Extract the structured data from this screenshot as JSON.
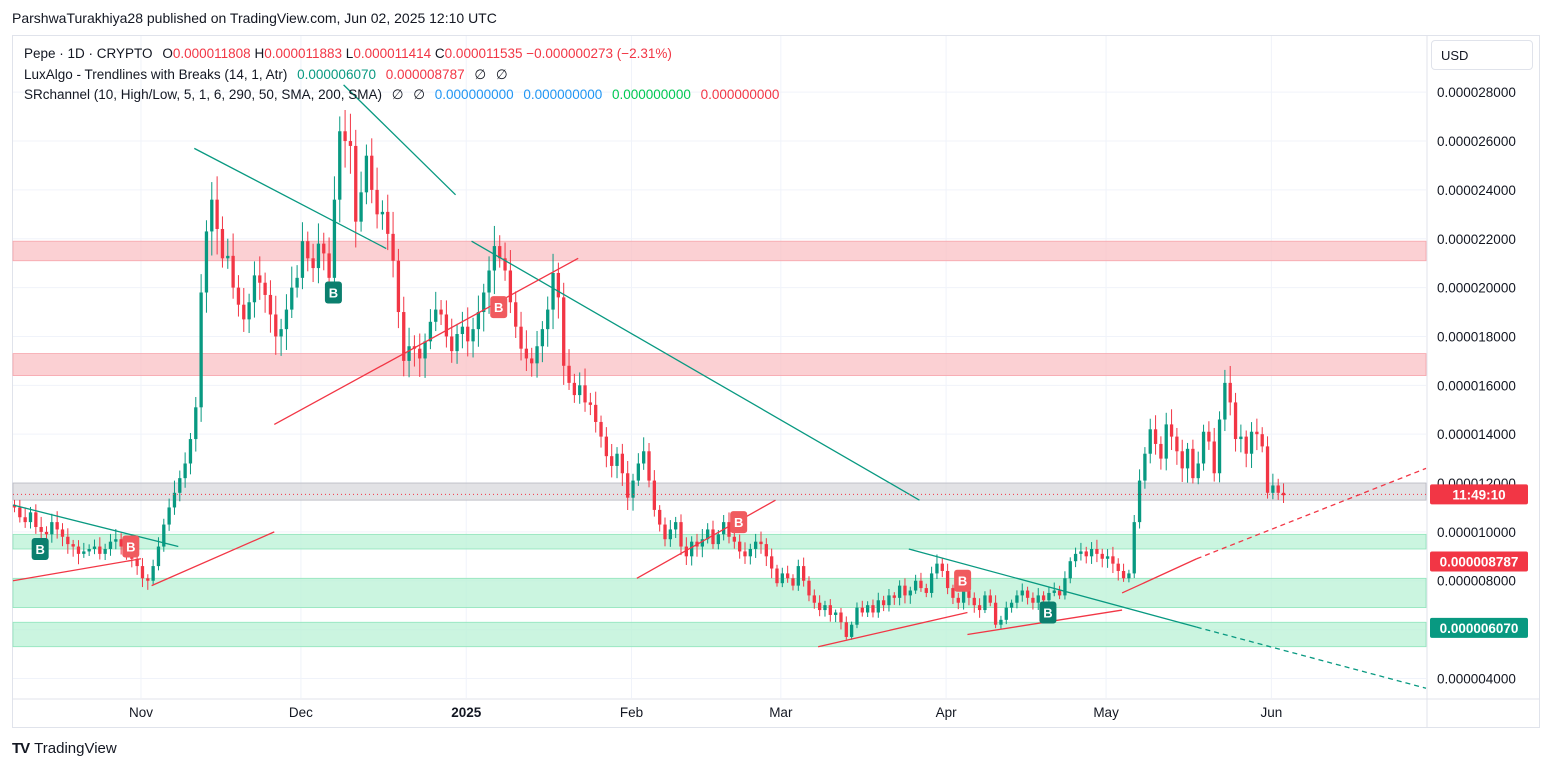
{
  "header": {
    "publisher_line": "ParshwaTurakhiya28 published on TradingView.com, Jun 02, 2025 12:10 UTC"
  },
  "legend": {
    "symbol_line": {
      "symbol": "Pepe · 1D · CRYPTO",
      "o_label": "O",
      "o_value": "0.000011808",
      "h_label": "H",
      "h_value": "0.000011883",
      "l_label": "L",
      "l_value": "0.000011414",
      "c_label": "C",
      "c_value": "0.000011535",
      "change": "−0.000000273 (−2.31%)"
    },
    "luxalgo_line": {
      "name": "LuxAlgo - Trendlines with Breaks (14, 1, Atr)",
      "v1": "0.000006070",
      "v2": "0.000008787",
      "v3": "∅",
      "v4": "∅"
    },
    "srchannel_line": {
      "name": "SRchannel (10, High/Low, 5, 1, 6, 290, 50, SMA, 200, SMA)",
      "v1": "∅",
      "v2": "∅",
      "v3": "0.000000000",
      "v4": "0.000000000",
      "v5": "0.000000000",
      "v6": "0.000000000"
    }
  },
  "currency_button": "USD",
  "footer": {
    "brand": "TradingView",
    "logo_glyph": "TV"
  },
  "colors": {
    "up": "#089981",
    "down": "#f23645",
    "resistance_zone": "#f9c0c4",
    "support_zone": "#b9f1d5",
    "price_zone": "#d8d8dc",
    "trend_teal": "#089981",
    "trend_red": "#f23645"
  },
  "chart_data": {
    "type": "candlestick",
    "title": "Pepe · 1D · CRYPTO",
    "x_tick_labels": [
      "Nov",
      "Dec",
      "2025",
      "Feb",
      "Mar",
      "Apr",
      "May",
      "Jun"
    ],
    "x_tick_dates": [
      "2024-11-01",
      "2024-12-01",
      "2025-01-01",
      "2025-02-01",
      "2025-03-01",
      "2025-04-01",
      "2025-05-01",
      "2025-06-01"
    ],
    "x_range": [
      "2024-10-08",
      "2025-06-30"
    ],
    "y_tick_labels": [
      "0.000028000",
      "0.000026000",
      "0.000024000",
      "0.000022000",
      "0.000020000",
      "0.000018000",
      "0.000016000",
      "0.000014000",
      "0.000012000",
      "0.000010000",
      "0.000008000",
      "0.000006000",
      "0.000004000"
    ],
    "y_ticks": [
      2.8e-05,
      2.6e-05,
      2.4e-05,
      2.2e-05,
      2e-05,
      1.8e-05,
      1.6e-05,
      1.4e-05,
      1.2e-05,
      1e-05,
      8e-06,
      6e-06,
      4e-06
    ],
    "ylim": [
      3.2e-06,
      3.03e-05
    ],
    "grid": true,
    "price_labels": [
      {
        "text": "11:49:10",
        "value": 1.1535e-05,
        "color": "#f23645"
      },
      {
        "text": "0.000008787",
        "value": 8.787e-06,
        "color": "#f23645"
      },
      {
        "text": "0.000006070",
        "value": 6.07e-06,
        "color": "#089981"
      }
    ],
    "zones": [
      {
        "kind": "resistance",
        "low": 2.11e-05,
        "high": 2.19e-05
      },
      {
        "kind": "resistance",
        "low": 1.64e-05,
        "high": 1.73e-05
      },
      {
        "kind": "price",
        "low": 1.13e-05,
        "high": 1.2e-05
      },
      {
        "kind": "support",
        "low": 9.3e-06,
        "high": 9.9e-06
      },
      {
        "kind": "support",
        "low": 6.9e-06,
        "high": 8.1e-06
      },
      {
        "kind": "support",
        "low": 5.3e-06,
        "high": 6.3e-06
      }
    ],
    "trendlines": [
      {
        "color": "teal",
        "from": [
          "2024-10-08",
          1.11e-05
        ],
        "to": [
          "2024-11-08",
          9.4e-06
        ],
        "dashed": false
      },
      {
        "color": "teal",
        "from": [
          "2024-11-11",
          2.57e-05
        ],
        "to": [
          "2024-12-17",
          2.16e-05
        ],
        "dashed": false
      },
      {
        "color": "teal",
        "from": [
          "2024-12-09",
          2.83e-05
        ],
        "to": [
          "2024-12-30",
          2.38e-05
        ],
        "dashed": false
      },
      {
        "color": "teal",
        "from": [
          "2025-01-02",
          2.19e-05
        ],
        "to": [
          "2025-03-27",
          1.13e-05
        ],
        "dashed": false
      },
      {
        "color": "teal",
        "from": [
          "2025-03-25",
          9.3e-06
        ],
        "to": [
          "2025-05-18",
          6.1e-06
        ],
        "dashed": false
      },
      {
        "color": "teal",
        "from": [
          "2025-05-18",
          6.1e-06
        ],
        "to": [
          "2025-06-30",
          3.6e-06
        ],
        "dashed": true
      },
      {
        "color": "red",
        "from": [
          "2024-10-08",
          8e-06
        ],
        "to": [
          "2024-11-01",
          8.9e-06
        ],
        "dashed": false
      },
      {
        "color": "red",
        "from": [
          "2024-11-03",
          7.8e-06
        ],
        "to": [
          "2024-11-26",
          1e-05
        ],
        "dashed": false
      },
      {
        "color": "red",
        "from": [
          "2024-11-26",
          1.44e-05
        ],
        "to": [
          "2025-01-22",
          2.12e-05
        ],
        "dashed": false
      },
      {
        "color": "red",
        "from": [
          "2025-02-02",
          8.1e-06
        ],
        "to": [
          "2025-02-28",
          1.13e-05
        ],
        "dashed": false
      },
      {
        "color": "red",
        "from": [
          "2025-03-08",
          5.3e-06
        ],
        "to": [
          "2025-04-05",
          6.7e-06
        ],
        "dashed": false
      },
      {
        "color": "red",
        "from": [
          "2025-04-05",
          5.8e-06
        ],
        "to": [
          "2025-05-04",
          6.8e-06
        ],
        "dashed": false
      },
      {
        "color": "red",
        "from": [
          "2025-05-04",
          7.5e-06
        ],
        "to": [
          "2025-05-18",
          8.9e-06
        ],
        "dashed": false
      },
      {
        "color": "red",
        "from": [
          "2025-05-18",
          8.9e-06
        ],
        "to": [
          "2025-06-30",
          1.26e-05
        ],
        "dashed": true
      }
    ],
    "markers": [
      {
        "label": "B",
        "date": "2024-10-13",
        "value": 9.3e-06,
        "color": "teal"
      },
      {
        "label": "B",
        "date": "2024-10-30",
        "value": 9.4e-06,
        "color": "red"
      },
      {
        "label": "B",
        "date": "2024-12-07",
        "value": 1.98e-05,
        "color": "teal"
      },
      {
        "label": "B",
        "date": "2025-01-07",
        "value": 1.92e-05,
        "color": "red"
      },
      {
        "label": "B",
        "date": "2025-02-21",
        "value": 1.04e-05,
        "color": "red"
      },
      {
        "label": "B",
        "date": "2025-04-04",
        "value": 8e-06,
        "color": "red"
      },
      {
        "label": "B",
        "date": "2025-04-20",
        "value": 6.7e-06,
        "color": "teal"
      }
    ],
    "start_date": "2024-10-08",
    "close": [
      1.1e-05,
      1.06e-05,
      1.04e-05,
      1.08e-05,
      1.02e-05,
      1e-05,
      9.9e-06,
      1.04e-05,
      1.01e-05,
      9.8e-06,
      9.5e-06,
      9.4e-06,
      9.1e-06,
      9.2e-06,
      9.3e-06,
      9.4e-06,
      9.1e-06,
      9.3e-06,
      9.6e-06,
      9.7e-06,
      9.4e-06,
      9.2e-06,
      8.9e-06,
      8.6e-06,
      8.1e-06,
      8e-06,
      8.6e-06,
      9.4e-06,
      1.03e-05,
      1.1e-05,
      1.16e-05,
      1.22e-05,
      1.28e-05,
      1.38e-05,
      1.51e-05,
      1.98e-05,
      2.23e-05,
      2.36e-05,
      2.24e-05,
      2.12e-05,
      2.13e-05,
      2e-05,
      1.93e-05,
      1.87e-05,
      1.94e-05,
      2.05e-05,
      2.02e-05,
      1.97e-05,
      1.89e-05,
      1.8e-05,
      1.83e-05,
      1.91e-05,
      2e-05,
      2.04e-05,
      2.19e-05,
      2.12e-05,
      2.08e-05,
      2.18e-05,
      2.14e-05,
      2.04e-05,
      2.36e-05,
      2.64e-05,
      2.6e-05,
      2.58e-05,
      2.27e-05,
      2.39e-05,
      2.54e-05,
      2.4e-05,
      2.3e-05,
      2.31e-05,
      2.22e-05,
      2.11e-05,
      1.9e-05,
      1.7e-05,
      1.76e-05,
      1.75e-05,
      1.71e-05,
      1.78e-05,
      1.86e-05,
      1.91e-05,
      1.89e-05,
      1.8e-05,
      1.74e-05,
      1.81e-05,
      1.84e-05,
      1.78e-05,
      1.83e-05,
      1.9e-05,
      1.98e-05,
      2.07e-05,
      2.17e-05,
      2.12e-05,
      2.07e-05,
      1.94e-05,
      1.84e-05,
      1.75e-05,
      1.71e-05,
      1.69e-05,
      1.76e-05,
      1.83e-05,
      1.91e-05,
      2.06e-05,
      1.96e-05,
      1.68e-05,
      1.61e-05,
      1.56e-05,
      1.6e-05,
      1.53e-05,
      1.52e-05,
      1.45e-05,
      1.39e-05,
      1.31e-05,
      1.27e-05,
      1.32e-05,
      1.24e-05,
      1.14e-05,
      1.21e-05,
      1.28e-05,
      1.33e-05,
      1.21e-05,
      1.09e-05,
      1.03e-05,
      9.7e-06,
      1.01e-05,
      1.04e-05,
      9.4e-06,
      9e-06,
      9.6e-06,
      9.4e-06,
      9.7e-06,
      1.01e-05,
      9.5e-06,
      9.9e-06,
      1.04e-05,
      9.8e-06,
      9.6e-06,
      9.2e-06,
      9e-06,
      9.3e-06,
      9.6e-06,
      9.5e-06,
      9e-06,
      8.5e-06,
      7.9e-06,
      8.3e-06,
      8.1e-06,
      7.8e-06,
      8.6e-06,
      8e-06,
      7.4e-06,
      7.1e-06,
      6.8e-06,
      7e-06,
      6.6e-06,
      6.7e-06,
      6.3e-06,
      5.7e-06,
      6.2e-06,
      6.9e-06,
      6.7e-06,
      7e-06,
      6.7e-06,
      7.2e-06,
      7e-06,
      7.4e-06,
      7.3e-06,
      7.8e-06,
      7.4e-06,
      7.6e-06,
      8e-06,
      7.7e-06,
      7.5e-06,
      8.3e-06,
      8.7e-06,
      8.4e-06,
      7.7e-06,
      7.3e-06,
      7.1e-06,
      7.6e-06,
      7.3e-06,
      7e-06,
      6.8e-06,
      7.4e-06,
      7.1e-06,
      6.2e-06,
      6.4e-06,
      6.9e-06,
      7.1e-06,
      7.4e-06,
      7.6e-06,
      7.3e-06,
      7.1e-06,
      7.4e-06,
      7.2e-06,
      7.5e-06,
      7.6e-06,
      7.4e-06,
      8.1e-06,
      8.8e-06,
      9.1e-06,
      9.2e-06,
      9e-06,
      9.3e-06,
      9.1e-06,
      8.9e-06,
      9e-06,
      8.7e-06,
      8.4e-06,
      8.1e-06,
      8.3e-06,
      1.04e-05,
      1.21e-05,
      1.32e-05,
      1.42e-05,
      1.36e-05,
      1.3e-05,
      1.44e-05,
      1.39e-05,
      1.33e-05,
      1.26e-05,
      1.34e-05,
      1.22e-05,
      1.28e-05,
      1.41e-05,
      1.37e-05,
      1.24e-05,
      1.46e-05,
      1.61e-05,
      1.53e-05,
      1.38e-05,
      1.39e-05,
      1.32e-05,
      1.41e-05,
      1.4e-05,
      1.35e-05,
      1.16e-05,
      1.19e-05,
      1.16e-05,
      1.15e-05
    ]
  }
}
